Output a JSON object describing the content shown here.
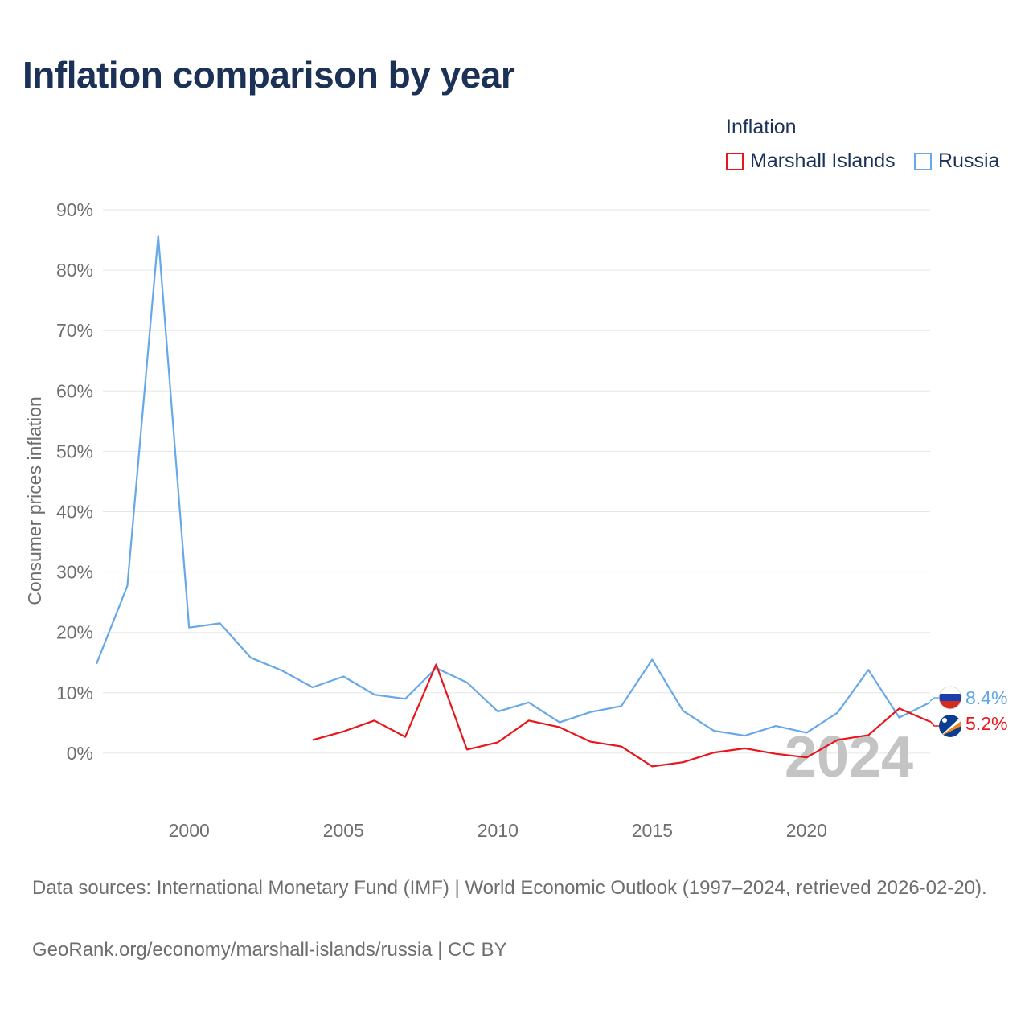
{
  "title": "Inflation comparison by year",
  "legend": {
    "heading": "Inflation",
    "items": [
      {
        "name": "Marshall Islands",
        "color": "#e8161b"
      },
      {
        "name": "Russia",
        "color": "#66a8e8"
      }
    ]
  },
  "year_overlay": "2024",
  "end_labels": {
    "russia": {
      "text": "8.4%",
      "color": "#5fa4e6",
      "flag_icon": "russia-flag-icon"
    },
    "marshall": {
      "text": "5.2%",
      "color": "#e8161b",
      "flag_icon": "marshall-islands-flag-icon"
    }
  },
  "footer": {
    "sources": "Data sources: International Monetary Fund (IMF) | World Economic Outlook (1997–2024, retrieved 2026-02-20).",
    "credit": "GeoRank.org/economy/marshall-islands/russia | CC BY"
  },
  "chart_data": {
    "type": "line",
    "title": "Inflation comparison by year",
    "xlabel": "",
    "ylabel": "Consumer prices inflation",
    "xlim": [
      1997,
      2024
    ],
    "ylim": [
      -10,
      90
    ],
    "y_ticks": [
      0,
      10,
      20,
      30,
      40,
      50,
      60,
      70,
      80,
      90
    ],
    "y_tick_labels": [
      "0%",
      "10%",
      "20%",
      "30%",
      "40%",
      "50%",
      "60%",
      "70%",
      "80%",
      "90%"
    ],
    "x_ticks": [
      2000,
      2005,
      2010,
      2015,
      2020
    ],
    "x_tick_labels": [
      "2000",
      "2005",
      "2010",
      "2015",
      "2020"
    ],
    "grid": true,
    "legend_position": "top-right",
    "series": [
      {
        "name": "Russia",
        "color": "#66a8e8",
        "x": [
          1997,
          1998,
          1999,
          2000,
          2001,
          2002,
          2003,
          2004,
          2005,
          2006,
          2007,
          2008,
          2009,
          2010,
          2011,
          2012,
          2013,
          2014,
          2015,
          2016,
          2017,
          2018,
          2019,
          2020,
          2021,
          2022,
          2023,
          2024
        ],
        "values": [
          14.8,
          27.7,
          85.7,
          20.8,
          21.5,
          15.8,
          13.7,
          10.9,
          12.7,
          9.7,
          9.0,
          14.1,
          11.7,
          6.9,
          8.4,
          5.1,
          6.8,
          7.8,
          15.5,
          7.0,
          3.7,
          2.9,
          4.5,
          3.4,
          6.7,
          13.8,
          5.9,
          8.4
        ]
      },
      {
        "name": "Marshall Islands",
        "color": "#e8161b",
        "x": [
          2004,
          2005,
          2006,
          2007,
          2008,
          2009,
          2010,
          2011,
          2012,
          2013,
          2014,
          2015,
          2016,
          2017,
          2018,
          2019,
          2020,
          2021,
          2022,
          2023,
          2024
        ],
        "values": [
          2.2,
          3.6,
          5.4,
          2.7,
          14.7,
          0.6,
          1.8,
          5.4,
          4.3,
          1.9,
          1.1,
          -2.2,
          -1.5,
          0.1,
          0.8,
          -0.1,
          -0.7,
          2.2,
          3.0,
          7.4,
          5.2
        ]
      }
    ]
  }
}
